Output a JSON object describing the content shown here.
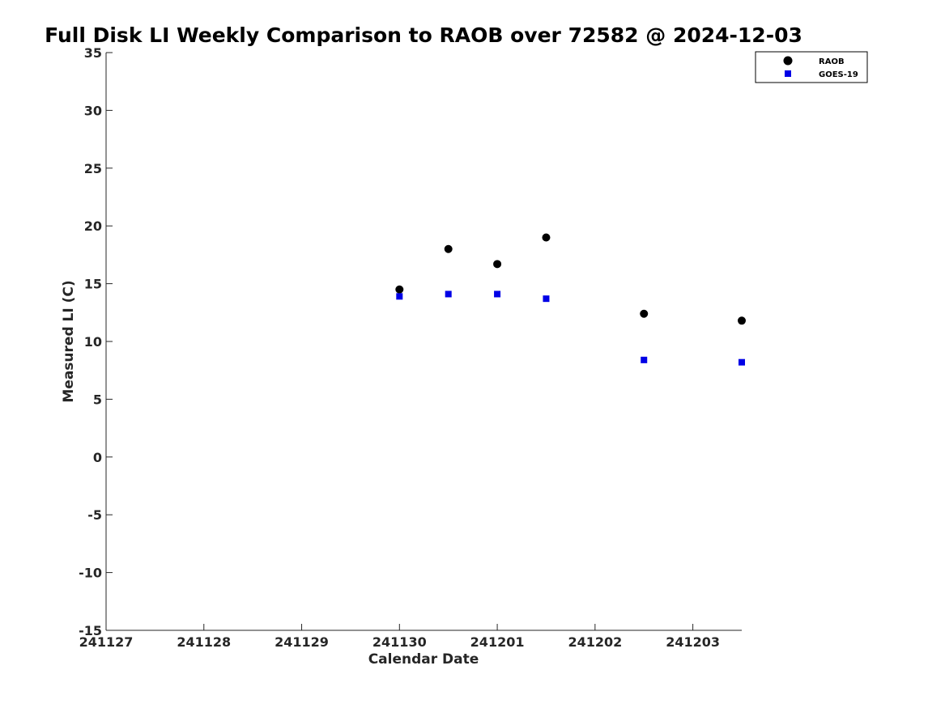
{
  "chart_data": {
    "type": "scatter",
    "title": "Full Disk LI Weekly Comparison to RAOB over 72582 @ 2024-12-03",
    "xlabel": "Calendar Date",
    "ylabel": "Measured LI (C)",
    "xlim": [
      0,
      6.5
    ],
    "ylim": [
      -15,
      35
    ],
    "x_tick_values": [
      0,
      1,
      2,
      3,
      4,
      5,
      6
    ],
    "x_tick_labels": [
      "241127",
      "241128",
      "241129",
      "241130",
      "241201",
      "241202",
      "241203"
    ],
    "y_tick_values": [
      35,
      30,
      25,
      20,
      15,
      10,
      5,
      0,
      -5,
      -10,
      -15
    ],
    "y_tick_labels": [
      "35",
      "30",
      "25",
      "20",
      "15",
      "10",
      "5",
      "0",
      "-5",
      "-10",
      "-15"
    ],
    "grid": false,
    "legend_position": "top-right",
    "series": [
      {
        "name": "RAOB",
        "marker": "circle",
        "color": "#000000",
        "x": [
          3.0,
          3.5,
          4.0,
          4.5,
          5.5,
          6.5
        ],
        "values": [
          14.5,
          18.0,
          16.7,
          19.0,
          12.4,
          11.8
        ]
      },
      {
        "name": "GOES-19",
        "marker": "square",
        "color": "#0000e6",
        "x": [
          3.0,
          3.5,
          4.0,
          4.5,
          5.5,
          6.5
        ],
        "values": [
          13.9,
          14.1,
          14.1,
          13.7,
          8.4,
          8.2
        ]
      }
    ]
  }
}
